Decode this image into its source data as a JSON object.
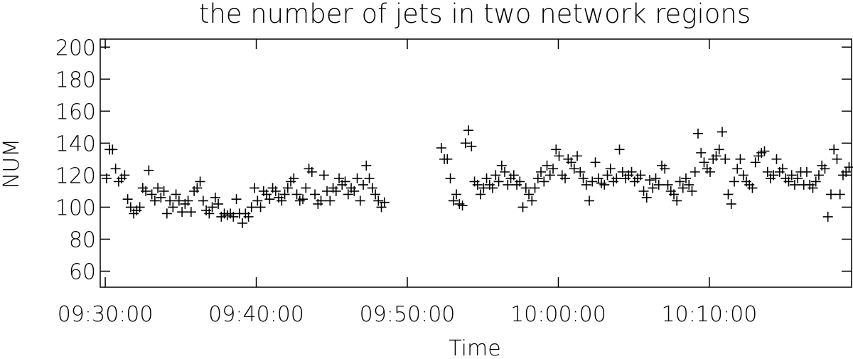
{
  "chart_data": {
    "type": "scatter",
    "title": "the number of jets in two network regions",
    "xlabel": "Time",
    "ylabel": "NUM",
    "xlim": [
      -20,
      2965
    ],
    "ylim": [
      50,
      205
    ],
    "xticks": [
      {
        "value": 0,
        "label": "09:30:00"
      },
      {
        "value": 600,
        "label": "09:40:00"
      },
      {
        "value": 1200,
        "label": "09:50:00"
      },
      {
        "value": 1800,
        "label": "10:00:00"
      },
      {
        "value": 2400,
        "label": "10:10:00"
      }
    ],
    "yticks": [
      60,
      80,
      100,
      120,
      140,
      160,
      180,
      200
    ],
    "color": "#000000",
    "x": [
      5,
      17,
      29,
      41,
      53,
      65,
      77,
      89,
      101,
      113,
      125,
      137,
      149,
      161,
      173,
      185,
      197,
      209,
      221,
      233,
      245,
      257,
      269,
      281,
      293,
      305,
      317,
      329,
      341,
      353,
      365,
      377,
      389,
      401,
      413,
      425,
      437,
      449,
      461,
      473,
      485,
      497,
      509,
      521,
      533,
      545,
      557,
      569,
      581,
      593,
      605,
      617,
      629,
      641,
      653,
      665,
      677,
      689,
      701,
      713,
      725,
      737,
      749,
      761,
      773,
      785,
      797,
      809,
      821,
      833,
      845,
      857,
      869,
      881,
      893,
      905,
      917,
      929,
      941,
      953,
      965,
      977,
      989,
      1001,
      1013,
      1025,
      1037,
      1049,
      1061,
      1073,
      1085,
      1097,
      1109,
      1335,
      1347,
      1359,
      1371,
      1383,
      1395,
      1407,
      1419,
      1431,
      1443,
      1455,
      1467,
      1479,
      1491,
      1503,
      1515,
      1527,
      1539,
      1551,
      1563,
      1575,
      1587,
      1599,
      1611,
      1623,
      1635,
      1647,
      1659,
      1671,
      1683,
      1695,
      1707,
      1719,
      1731,
      1743,
      1755,
      1767,
      1779,
      1791,
      1803,
      1815,
      1827,
      1839,
      1851,
      1863,
      1875,
      1887,
      1899,
      1911,
      1923,
      1935,
      1947,
      1959,
      1971,
      1983,
      1995,
      2007,
      2019,
      2031,
      2043,
      2055,
      2067,
      2079,
      2091,
      2103,
      2115,
      2127,
      2139,
      2151,
      2163,
      2175,
      2187,
      2199,
      2211,
      2223,
      2235,
      2247,
      2259,
      2271,
      2283,
      2295,
      2307,
      2319,
      2331,
      2343,
      2355,
      2367,
      2379,
      2391,
      2403,
      2415,
      2427,
      2439,
      2451,
      2463,
      2475,
      2487,
      2499,
      2511,
      2523,
      2535,
      2547,
      2559,
      2571,
      2583,
      2595,
      2607,
      2619,
      2631,
      2643,
      2655,
      2667,
      2679,
      2691,
      2703,
      2715,
      2727,
      2739,
      2751,
      2763,
      2775,
      2787,
      2799,
      2811,
      2823,
      2835,
      2847,
      2859,
      2871,
      2883,
      2895,
      2907,
      2919,
      2931,
      2943,
      2955
    ],
    "values": [
      118,
      136,
      136,
      124,
      116,
      118,
      120,
      105,
      100,
      96,
      98,
      100,
      112,
      110,
      123,
      108,
      104,
      112,
      106,
      110,
      96,
      104,
      100,
      108,
      104,
      97,
      102,
      104,
      97,
      110,
      112,
      116,
      104,
      98,
      96,
      100,
      106,
      102,
      94,
      96,
      95,
      96,
      94,
      105,
      96,
      90,
      96,
      94,
      100,
      112,
      104,
      100,
      110,
      108,
      105,
      112,
      110,
      106,
      104,
      108,
      112,
      116,
      118,
      108,
      104,
      105,
      112,
      124,
      122,
      108,
      102,
      104,
      120,
      110,
      104,
      112,
      110,
      118,
      114,
      116,
      108,
      112,
      110,
      118,
      104,
      114,
      126,
      118,
      112,
      108,
      104,
      100,
      103,
      137,
      130,
      130,
      118,
      104,
      108,
      102,
      101,
      140,
      148,
      138,
      116,
      114,
      108,
      112,
      118,
      114,
      112,
      120,
      116,
      126,
      122,
      114,
      118,
      120,
      114,
      116,
      100,
      112,
      108,
      104,
      112,
      118,
      122,
      116,
      126,
      120,
      124,
      136,
      132,
      120,
      118,
      130,
      128,
      124,
      132,
      122,
      118,
      114,
      104,
      116,
      128,
      118,
      115,
      114,
      120,
      124,
      116,
      118,
      136,
      122,
      118,
      120,
      122,
      116,
      118,
      120,
      110,
      106,
      117,
      112,
      118,
      114,
      126,
      124,
      114,
      110,
      108,
      104,
      116,
      112,
      118,
      114,
      110,
      122,
      146,
      134,
      128,
      124,
      122,
      130,
      132,
      136,
      147,
      130,
      108,
      102,
      116,
      124,
      130,
      120,
      116,
      114,
      112,
      128,
      132,
      134,
      135,
      122,
      118,
      120,
      130,
      122,
      124,
      118,
      116,
      120,
      114,
      118,
      122,
      114,
      122,
      114,
      112,
      116,
      120,
      126,
      124,
      94,
      108,
      136,
      130,
      108,
      120,
      122,
      125
    ]
  }
}
